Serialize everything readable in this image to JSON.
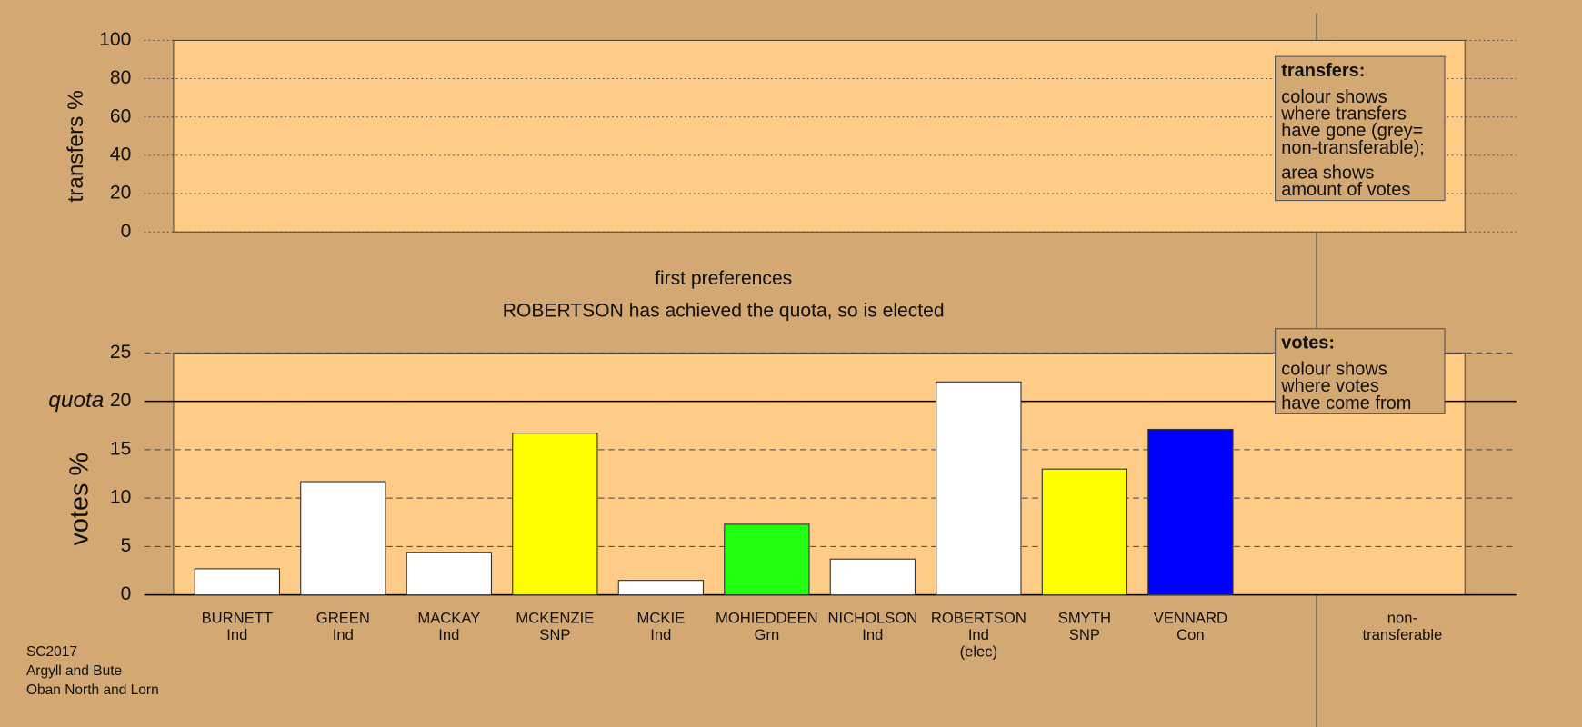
{
  "chart_data": [
    {
      "type": "bar",
      "ylabel": "transfers %",
      "ylim": [
        0,
        100
      ],
      "yticks": [
        0,
        20,
        40,
        60,
        80,
        100
      ],
      "grid": true,
      "grid_style": "dotted",
      "legend": {
        "title": "transfers:",
        "paragraphs": [
          [
            "colour shows",
            "where transfers",
            "have gone (grey=",
            "non-transferable);"
          ],
          [
            "area shows",
            "amount of votes"
          ]
        ]
      }
    },
    {
      "type": "bar",
      "ylabel": "votes %",
      "ylim": [
        0,
        25
      ],
      "yticks": [
        0,
        5,
        10,
        15,
        20,
        25
      ],
      "grid": true,
      "grid_style": "dashed",
      "quota": {
        "value": 20,
        "label": "quota"
      },
      "categories": [
        [
          "BURNETT",
          "Ind"
        ],
        [
          "GREEN",
          "Ind"
        ],
        [
          "MACKAY",
          "Ind"
        ],
        [
          "MCKENZIE",
          "SNP"
        ],
        [
          "MCKIE",
          "Ind"
        ],
        [
          "MOHIEDDEEN",
          "Grn"
        ],
        [
          "NICHOLSON",
          "Ind"
        ],
        [
          "ROBERTSON",
          "Ind",
          "(elec)"
        ],
        [
          "SMYTH",
          "SNP"
        ],
        [
          "VENNARD",
          "Con"
        ],
        null,
        [
          "non-",
          "transferable"
        ]
      ],
      "values": [
        2.7,
        11.7,
        4.4,
        16.7,
        1.5,
        7.3,
        3.7,
        22.0,
        13.0,
        17.1,
        null,
        null
      ],
      "colors": [
        "#ffffff",
        "#ffffff",
        "#ffffff",
        "#ffff00",
        "#ffffff",
        "#22ff11",
        "#ffffff",
        "#ffffff",
        "#ffff00",
        "#0000ff",
        null,
        null
      ],
      "legend": {
        "title": "votes:",
        "paragraphs": [
          [
            "colour shows",
            "where votes",
            "have come from"
          ]
        ]
      }
    }
  ],
  "headings": [
    "first preferences",
    "ROBERTSON has achieved the quota, so is elected"
  ],
  "footer": [
    "SC2017",
    "Argyll and Bute",
    "Oban North and Lorn"
  ]
}
